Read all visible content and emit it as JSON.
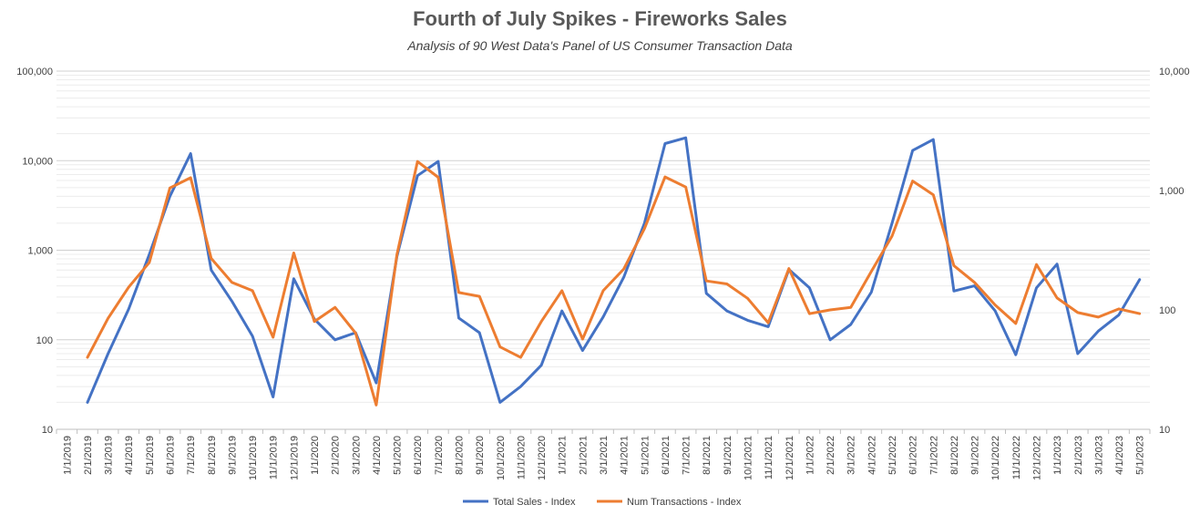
{
  "chart_data": {
    "type": "line",
    "title": "Fourth of July Spikes - Fireworks Sales",
    "subtitle": "Analysis of 90 West Data's Panel of US Consumer Transaction Data",
    "x": [
      "1/1/2019",
      "2/1/2019",
      "3/1/2019",
      "4/1/2019",
      "5/1/2019",
      "6/1/2019",
      "7/1/2019",
      "8/1/2019",
      "9/1/2019",
      "10/1/2019",
      "11/1/2019",
      "12/1/2019",
      "1/1/2020",
      "2/1/2020",
      "3/1/2020",
      "4/1/2020",
      "5/1/2020",
      "6/1/2020",
      "7/1/2020",
      "8/1/2020",
      "9/1/2020",
      "10/1/2020",
      "11/1/2020",
      "12/1/2020",
      "1/1/2021",
      "2/1/2021",
      "3/1/2021",
      "4/1/2021",
      "5/1/2021",
      "6/1/2021",
      "7/1/2021",
      "8/1/2021",
      "9/1/2021",
      "10/1/2021",
      "11/1/2021",
      "12/1/2021",
      "1/1/2022",
      "2/1/2022",
      "3/1/2022",
      "4/1/2022",
      "5/1/2022",
      "6/1/2022",
      "7/1/2022",
      "8/1/2022",
      "9/1/2022",
      "10/1/2022",
      "11/1/2022",
      "12/1/2022",
      "1/1/2023",
      "2/1/2023",
      "3/1/2023",
      "4/1/2023",
      "5/1/2023"
    ],
    "y_left": {
      "scale": "log",
      "range": [
        10,
        100000
      ],
      "ticks": [
        "10",
        "100",
        "1,000",
        "10,000",
        "100,000"
      ]
    },
    "y_right": {
      "scale": "log",
      "range": [
        10,
        10000
      ],
      "ticks": [
        "10",
        "100",
        "1,000",
        "10,000"
      ]
    },
    "series": [
      {
        "name": "Total Sales - Index",
        "axis": "left",
        "color": "#4472C4",
        "values": [
          null,
          20,
          70,
          220,
          900,
          4000,
          12000,
          600,
          270,
          110,
          23,
          480,
          170,
          100,
          120,
          33,
          850,
          6800,
          9800,
          175,
          120,
          20,
          30,
          52,
          210,
          76,
          180,
          500,
          2000,
          15500,
          18000,
          330,
          210,
          165,
          140,
          610,
          380,
          100,
          148,
          340,
          2000,
          13000,
          17200,
          350,
          400,
          210,
          68,
          380,
          700,
          70,
          125,
          190,
          470
        ]
      },
      {
        "name": "Num Transactions - Index",
        "axis": "right",
        "color": "#ED7D31",
        "values": [
          null,
          40,
          85,
          155,
          250,
          1050,
          1280,
          270,
          170,
          145,
          59,
          300,
          80,
          105,
          64,
          16,
          290,
          1750,
          1290,
          140,
          130,
          49,
          40,
          80,
          145,
          57,
          145,
          220,
          480,
          1300,
          1070,
          175,
          165,
          125,
          78,
          222,
          93,
          100,
          105,
          210,
          415,
          1200,
          920,
          235,
          170,
          110,
          77,
          240,
          126,
          95,
          87,
          102,
          93
        ]
      }
    ],
    "legend": {
      "position": "bottom",
      "entries": [
        "Total Sales - Index",
        "Num Transactions - Index"
      ]
    },
    "grid": true
  }
}
